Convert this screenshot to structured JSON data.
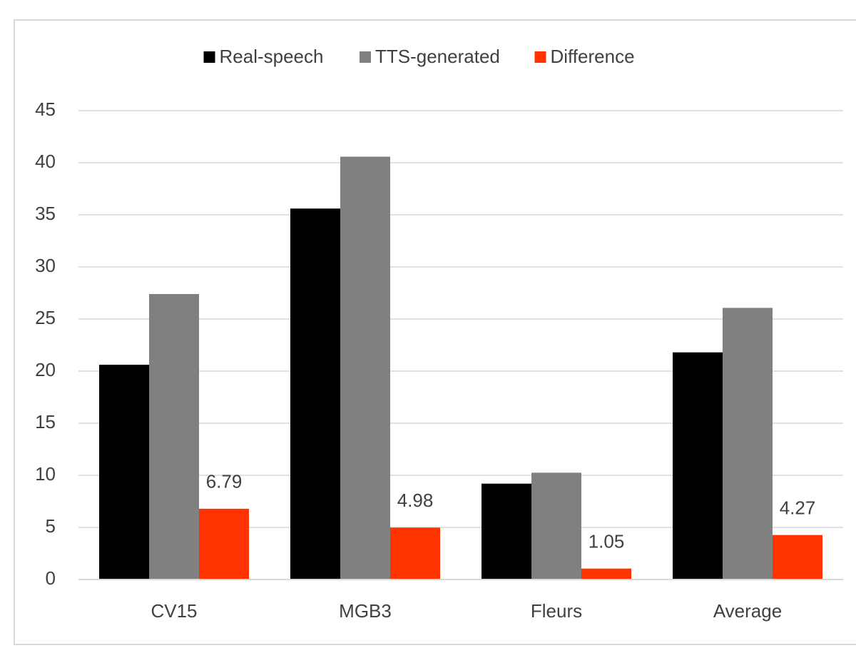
{
  "chart_data": {
    "type": "bar",
    "categories": [
      "CV15",
      "MGB3",
      "Fleurs",
      "Average"
    ],
    "series": [
      {
        "name": "Real-speech",
        "color": "#000000",
        "values": [
          20.61,
          35.6,
          9.2,
          21.8
        ]
      },
      {
        "name": "TTS-generated",
        "color": "#808080",
        "values": [
          27.4,
          40.58,
          10.25,
          26.07
        ]
      },
      {
        "name": "Difference",
        "color": "#ff3300",
        "values": [
          6.79,
          4.98,
          1.05,
          4.27
        ],
        "show_labels": true
      }
    ],
    "ylim": [
      0,
      45
    ],
    "yticks": [
      0,
      5,
      10,
      15,
      20,
      25,
      30,
      35,
      40,
      45
    ],
    "grid": true,
    "legend": "top"
  }
}
